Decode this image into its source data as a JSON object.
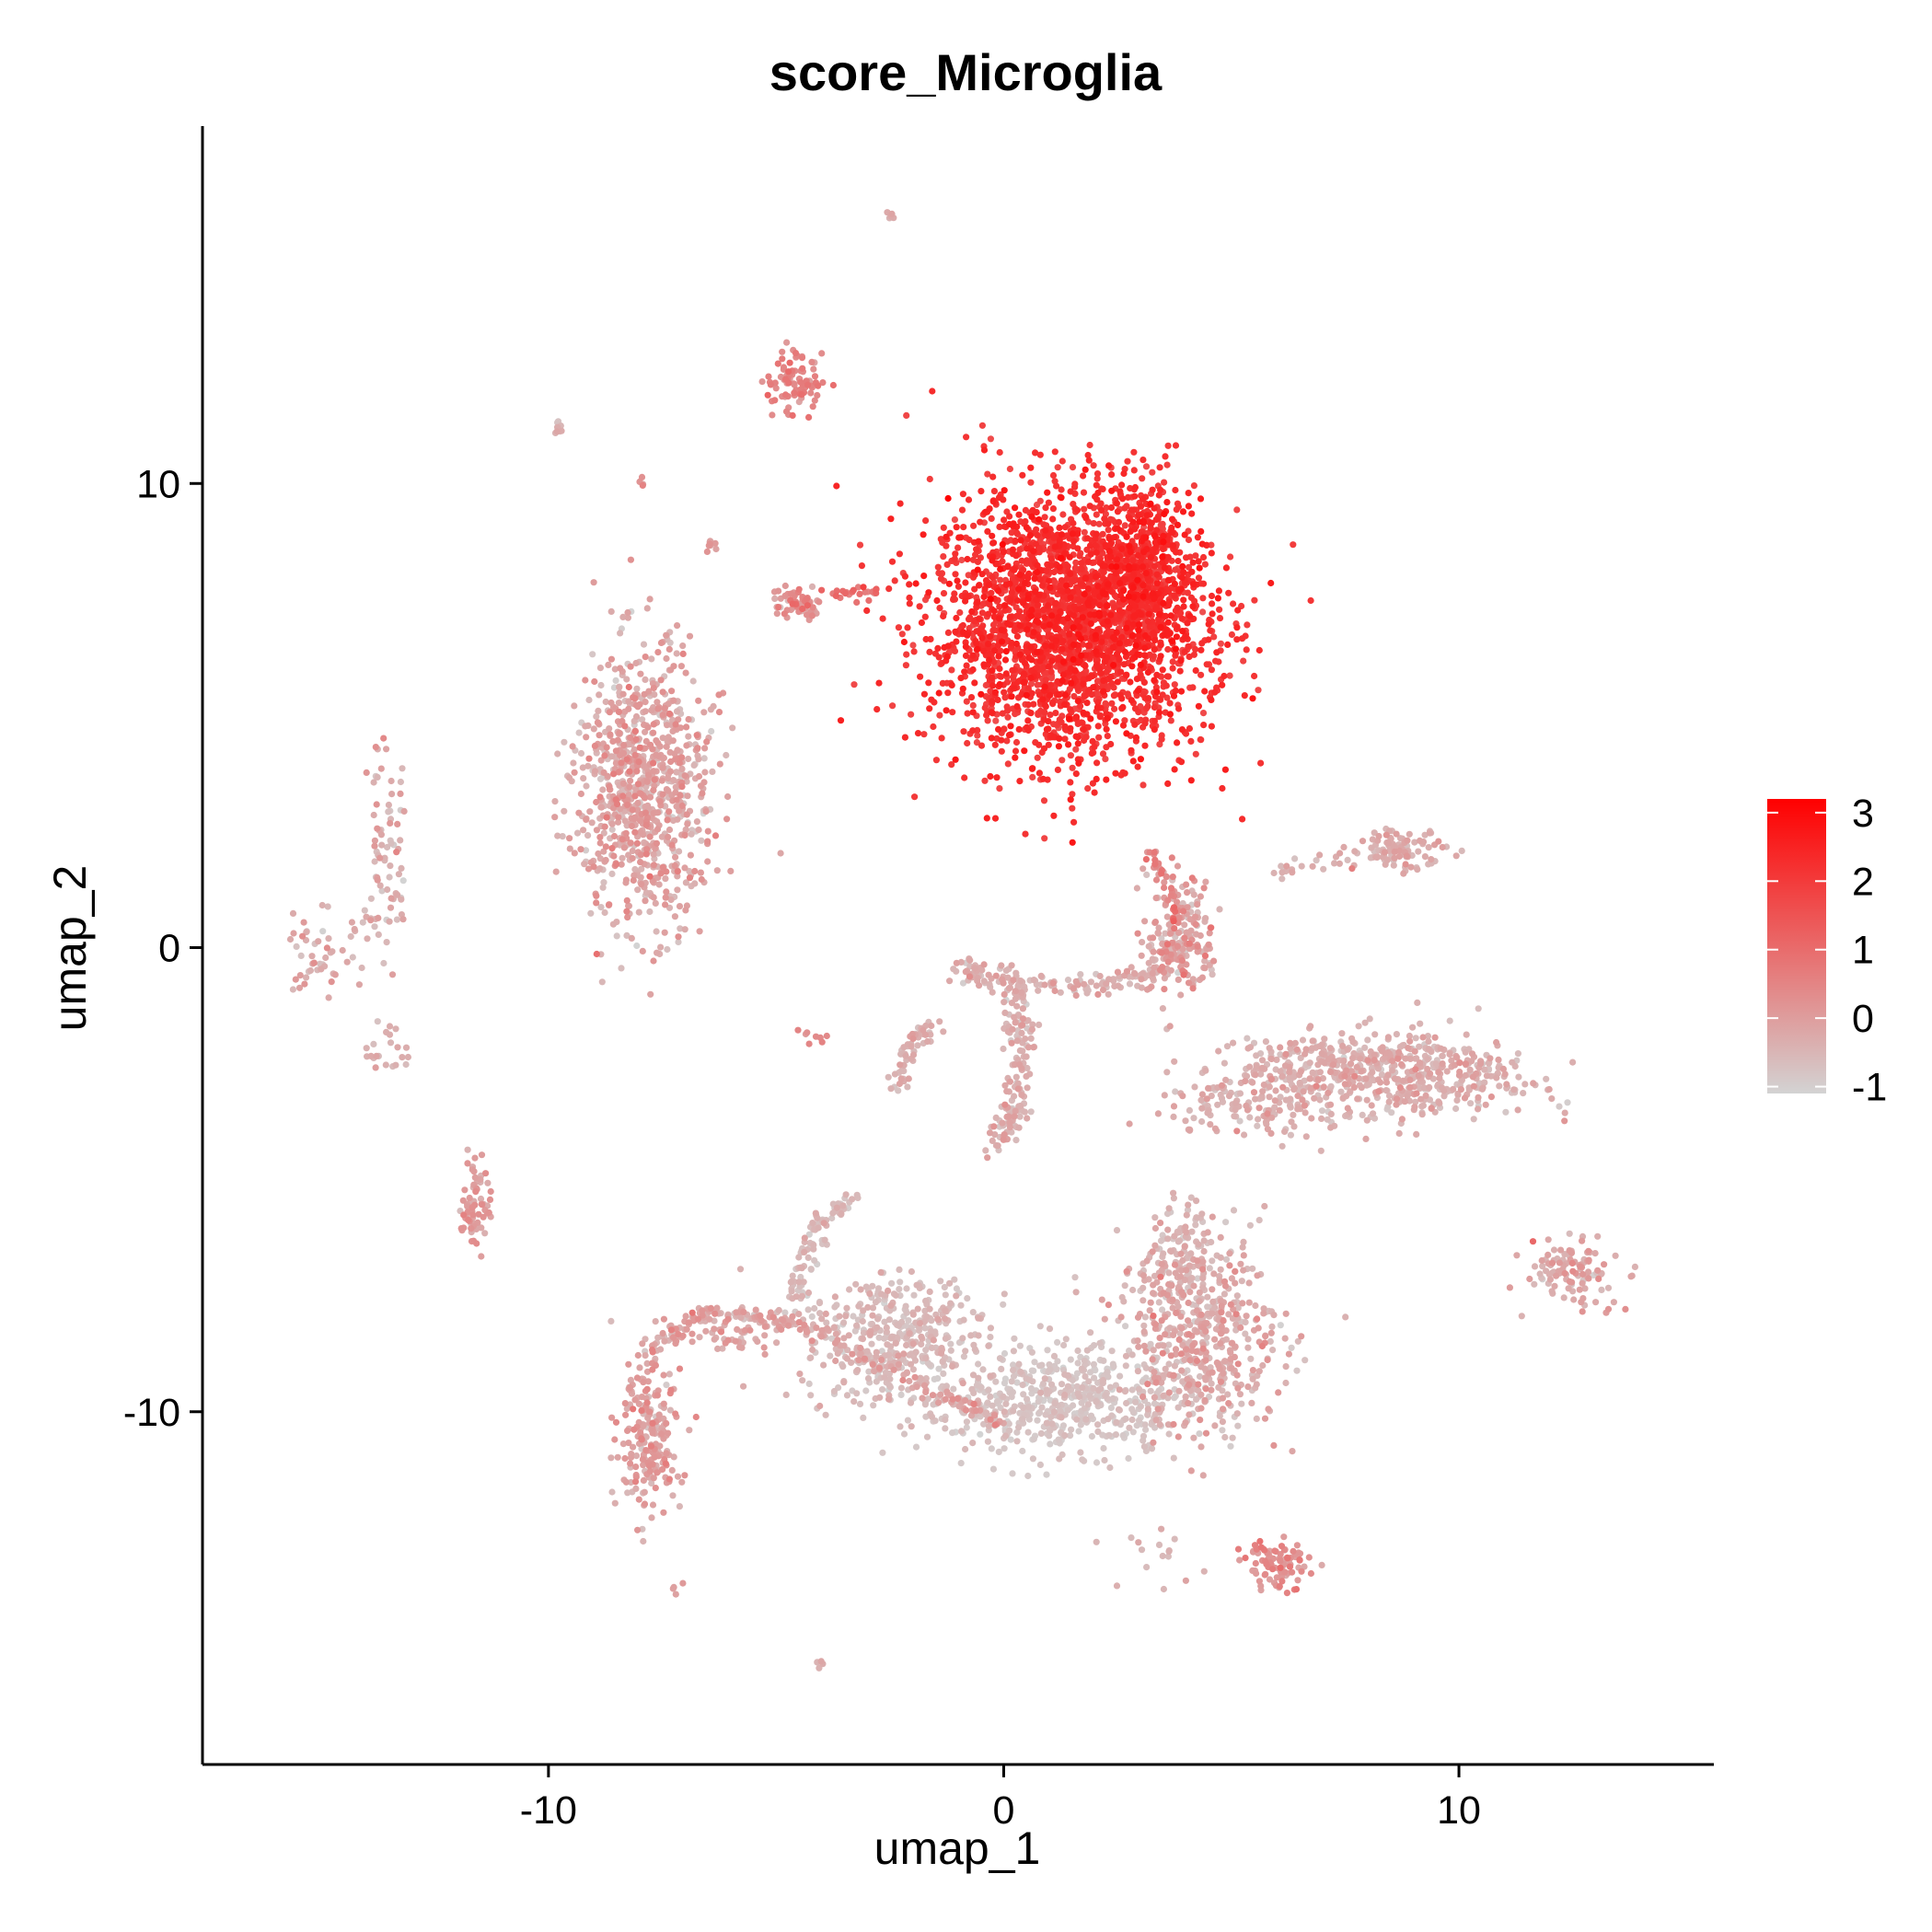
{
  "chart_data": {
    "type": "scatter",
    "title": "score_Microglia",
    "xlabel": "umap_1",
    "ylabel": "umap_2",
    "xlim": [
      -17.6,
      15.6
    ],
    "ylim": [
      -17.6,
      17.7
    ],
    "xticks": [
      -10,
      0,
      10
    ],
    "yticks": [
      10,
      0,
      -10
    ],
    "xtick_labels": [
      "-10",
      "0",
      "10"
    ],
    "ytick_labels": [
      "10",
      "0",
      "-10"
    ],
    "grid": false,
    "color_scale": {
      "low": "#d3d3d3",
      "high": "#ff0000",
      "min": -1.1,
      "max": 3.2,
      "breaks": [
        3,
        2,
        1,
        0,
        -1
      ],
      "labels": [
        "3",
        "2",
        "1",
        "0",
        "-1"
      ],
      "legend_position": "right"
    },
    "clusters": [
      {
        "x": 1.4,
        "y": 7.0,
        "sx": 1.5,
        "sy": 1.4,
        "n": 2600,
        "score": 2.2,
        "sd": 0.25
      },
      {
        "x": 3.1,
        "y": 8.1,
        "sx": 0.5,
        "sy": 1.0,
        "n": 400,
        "score": 2.3,
        "sd": 0.25
      },
      {
        "x": -7.9,
        "y": 3.4,
        "sx": 0.7,
        "sy": 1.5,
        "n": 900,
        "score": -0.2,
        "sd": 0.35
      },
      {
        "x": -4.6,
        "y": 12.2,
        "sx": 0.3,
        "sy": 0.3,
        "n": 90,
        "score": 0.4,
        "sd": 0.3
      },
      {
        "x": -4.5,
        "y": 7.4,
        "sx": 0.3,
        "sy": 0.2,
        "n": 50,
        "score": 0.2,
        "sd": 0.3
      },
      {
        "x": -2.5,
        "y": 15.8,
        "sx": 0.08,
        "sy": 0.08,
        "n": 6,
        "score": -0.4,
        "sd": 0.2
      },
      {
        "x": -9.8,
        "y": 11.2,
        "sx": 0.1,
        "sy": 0.1,
        "n": 8,
        "score": -0.4,
        "sd": 0.2
      },
      {
        "x": -6.4,
        "y": 8.7,
        "sx": 0.1,
        "sy": 0.1,
        "n": 8,
        "score": 0.0,
        "sd": 0.2
      },
      {
        "x": -8.0,
        "y": 10.0,
        "sx": 0.08,
        "sy": 0.08,
        "n": 4,
        "score": 0.2,
        "sd": 0.2
      },
      {
        "x": 3.9,
        "y": 0.2,
        "sx": 0.4,
        "sy": 0.7,
        "n": 180,
        "score": -0.1,
        "sd": 0.35
      },
      {
        "x": 8.7,
        "y": 2.1,
        "sx": 0.5,
        "sy": 0.2,
        "n": 80,
        "score": -0.3,
        "sd": 0.25
      },
      {
        "x": 8.5,
        "y": -2.8,
        "sx": 1.6,
        "sy": 0.45,
        "n": 500,
        "score": -0.4,
        "sd": 0.25
      },
      {
        "x": 5.5,
        "y": -3.4,
        "sx": 1.0,
        "sy": 0.35,
        "n": 140,
        "score": -0.4,
        "sd": 0.25
      },
      {
        "x": 1.2,
        "y": -9.7,
        "sx": 1.6,
        "sy": 0.6,
        "n": 600,
        "score": -0.8,
        "sd": 0.15
      },
      {
        "x": -2.4,
        "y": -8.4,
        "sx": 1.0,
        "sy": 0.7,
        "n": 400,
        "score": -0.6,
        "sd": 0.2
      },
      {
        "x": 4.3,
        "y": -8.3,
        "sx": 0.9,
        "sy": 1.0,
        "n": 500,
        "score": -0.3,
        "sd": 0.3
      },
      {
        "x": 3.9,
        "y": -6.5,
        "sx": 0.35,
        "sy": 0.7,
        "n": 100,
        "score": -0.5,
        "sd": 0.2
      },
      {
        "x": -7.8,
        "y": -10.6,
        "sx": 0.35,
        "sy": 0.8,
        "n": 200,
        "score": -0.1,
        "sd": 0.3
      },
      {
        "x": -6.0,
        "y": -8.3,
        "sx": 0.9,
        "sy": 0.2,
        "n": 70,
        "score": -0.2,
        "sd": 0.3
      },
      {
        "x": 12.5,
        "y": -7.0,
        "sx": 0.5,
        "sy": 0.35,
        "n": 110,
        "score": -0.2,
        "sd": 0.3
      },
      {
        "x": 6.0,
        "y": -13.3,
        "sx": 0.4,
        "sy": 0.25,
        "n": 90,
        "score": 0.2,
        "sd": 0.3
      },
      {
        "x": -11.6,
        "y": -5.5,
        "sx": 0.15,
        "sy": 0.5,
        "n": 70,
        "score": 0.0,
        "sd": 0.3
      },
      {
        "x": -13.6,
        "y": 2.2,
        "sx": 0.25,
        "sy": 1.2,
        "n": 70,
        "score": -0.3,
        "sd": 0.3
      },
      {
        "x": -15.0,
        "y": 0.0,
        "sx": 0.4,
        "sy": 0.5,
        "n": 30,
        "score": -0.3,
        "sd": 0.3
      },
      {
        "x": -13.5,
        "y": -2.3,
        "sx": 0.3,
        "sy": 0.3,
        "n": 22,
        "score": -0.4,
        "sd": 0.2
      },
      {
        "x": 3.8,
        "y": -12.9,
        "sx": 0.6,
        "sy": 0.5,
        "n": 16,
        "score": -0.5,
        "sd": 0.2
      },
      {
        "x": -7.2,
        "y": -13.8,
        "sx": 0.08,
        "sy": 0.08,
        "n": 4,
        "score": -0.1,
        "sd": 0.2
      },
      {
        "x": -4.1,
        "y": -15.4,
        "sx": 0.08,
        "sy": 0.08,
        "n": 4,
        "score": -0.2,
        "sd": 0.2
      },
      {
        "x": -4.3,
        "y": -1.9,
        "sx": 0.2,
        "sy": 0.12,
        "n": 8,
        "score": 0.2,
        "sd": 0.2
      }
    ],
    "trajectories": [
      {
        "points": [
          [
            -1.0,
            -0.5
          ],
          [
            0.2,
            -0.7
          ],
          [
            0.4,
            -2.0
          ],
          [
            0.3,
            -3.5
          ],
          [
            -0.2,
            -4.3
          ]
        ],
        "n": 220,
        "spread": 0.15,
        "score": -0.4,
        "sd": 0.25
      },
      {
        "points": [
          [
            0.2,
            -0.7
          ],
          [
            2.0,
            -0.8
          ],
          [
            3.2,
            -0.6
          ],
          [
            3.9,
            0.2
          ]
        ],
        "n": 120,
        "spread": 0.12,
        "score": -0.4,
        "sd": 0.25
      },
      {
        "points": [
          [
            -2.3,
            -3.0
          ],
          [
            -2.1,
            -2.0
          ],
          [
            -1.4,
            -1.7
          ]
        ],
        "n": 60,
        "spread": 0.1,
        "score": -0.4,
        "sd": 0.2
      },
      {
        "points": [
          [
            3.2,
            2.1
          ],
          [
            3.6,
            1.3
          ],
          [
            3.8,
            0.5
          ]
        ],
        "n": 45,
        "spread": 0.08,
        "score": 0.4,
        "sd": 0.4
      },
      {
        "points": [
          [
            -8.3,
            -10.0
          ],
          [
            -7.6,
            -8.5
          ],
          [
            -6.6,
            -7.9
          ],
          [
            -5.2,
            -7.9
          ],
          [
            -4.0,
            -8.3
          ],
          [
            -2.5,
            -9.1
          ],
          [
            -1.0,
            -9.8
          ],
          [
            0.0,
            -10.2
          ]
        ],
        "n": 220,
        "spread": 0.1,
        "score": -0.2,
        "sd": 0.3
      },
      {
        "points": [
          [
            -3.2,
            -5.4
          ],
          [
            -4.0,
            -5.9
          ],
          [
            -4.4,
            -6.7
          ],
          [
            -4.5,
            -7.6
          ]
        ],
        "n": 90,
        "spread": 0.12,
        "score": -0.6,
        "sd": 0.2
      },
      {
        "points": [
          [
            5.5,
            -2.6
          ],
          [
            7.0,
            -2.3
          ],
          [
            9.0,
            -2.3
          ],
          [
            10.5,
            -2.4
          ]
        ],
        "n": 120,
        "spread": 0.2,
        "score": -0.4,
        "sd": 0.25
      },
      {
        "points": [
          [
            5.8,
            1.5
          ],
          [
            7.5,
            2.0
          ],
          [
            9.0,
            2.1
          ]
        ],
        "n": 40,
        "spread": 0.1,
        "score": -0.4,
        "sd": 0.2
      },
      {
        "points": [
          [
            -4.9,
            7.3
          ],
          [
            -3.5,
            7.6
          ],
          [
            -2.6,
            7.7
          ]
        ],
        "n": 30,
        "spread": 0.08,
        "score": 0.8,
        "sd": 0.4
      },
      {
        "points": [
          [
            -15.6,
            -0.9
          ],
          [
            -15.0,
            -0.3
          ],
          [
            -14.0,
            0.6
          ],
          [
            -13.3,
            1.1
          ]
        ],
        "n": 30,
        "spread": 0.1,
        "score": -0.3,
        "sd": 0.25
      }
    ]
  }
}
